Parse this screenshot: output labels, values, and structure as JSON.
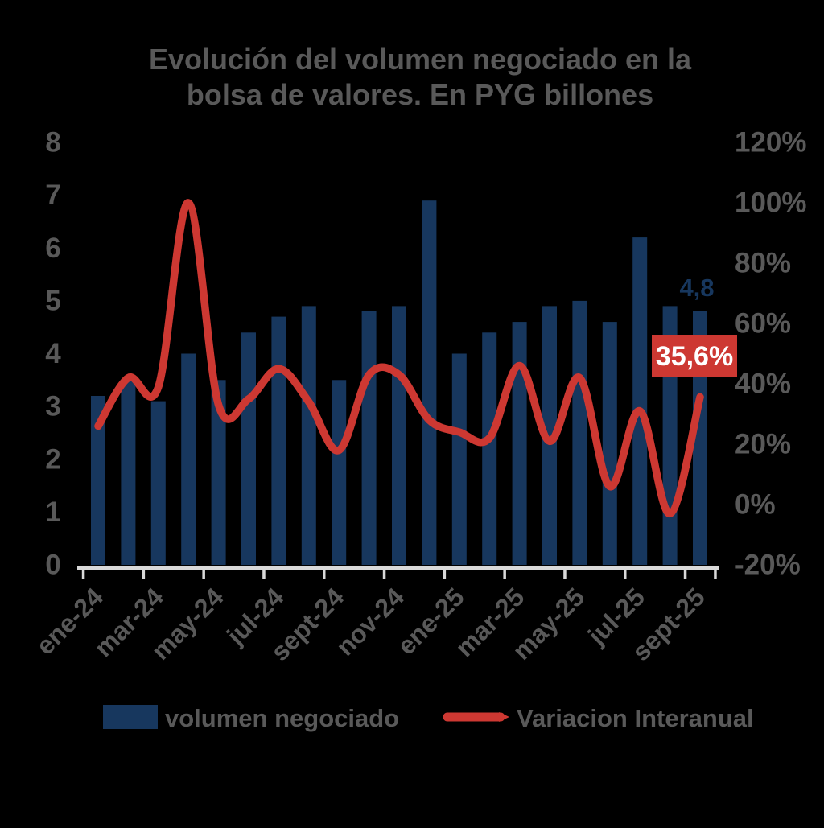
{
  "title": {
    "line1": "Evolución del volumen negociado en la",
    "line2": "bolsa de valores. En PYG billones"
  },
  "legend": {
    "bar_label": "volumen negociado",
    "line_label": "Variacion Interanual"
  },
  "annotations": {
    "last_bar_label": "4,8",
    "last_line_label": "35,6%"
  },
  "colors": {
    "bar": "#17375E",
    "line": "#CD3832",
    "text": "#595959",
    "axis_line": "#D9D9D9",
    "label_box": "#CD3832",
    "label_box_text": "#FFFFFF",
    "background": "#000000"
  },
  "chart_data": {
    "type": "bar+line",
    "title": "Evolución del volumen negociado en la bolsa de valores. En PYG billones",
    "categories": [
      "ene-24",
      "feb-24",
      "mar-24",
      "abr-24",
      "may-24",
      "jun-24",
      "jul-24",
      "ago-24",
      "sept-24",
      "oct-24",
      "nov-24",
      "dic-24",
      "ene-25",
      "feb-25",
      "mar-25",
      "abr-25",
      "may-25",
      "jun-25",
      "jul-25",
      "ago-25",
      "sept-25"
    ],
    "series": [
      {
        "name": "volumen negociado",
        "type": "bar",
        "axis": "left",
        "unit": "PYG billones",
        "values": [
          3.2,
          3.5,
          3.1,
          4.0,
          3.5,
          4.4,
          4.7,
          4.9,
          3.5,
          4.8,
          4.9,
          6.9,
          4.0,
          4.4,
          4.6,
          4.9,
          5.0,
          4.6,
          6.2,
          4.9,
          4.8
        ]
      },
      {
        "name": "Variacion Interanual",
        "type": "line",
        "axis": "right",
        "unit": "%",
        "values": [
          26,
          42,
          39,
          100,
          33,
          35,
          45,
          34,
          18,
          43,
          43,
          28,
          24,
          22,
          46,
          21,
          42,
          6,
          31,
          -3,
          35.6
        ]
      }
    ],
    "left_axis": {
      "ticks": [
        8,
        7,
        6,
        5,
        4,
        3,
        2,
        1,
        0
      ],
      "range": [
        0,
        8
      ],
      "grid": false
    },
    "right_axis": {
      "tick_labels": [
        "120%",
        "100%",
        "80%",
        "60%",
        "40%",
        "20%",
        "0%",
        "-20%"
      ],
      "tick_values": [
        120,
        100,
        80,
        60,
        40,
        20,
        0,
        -20
      ],
      "range": [
        -20,
        120
      ]
    },
    "x_tick_labels": [
      "ene-24",
      "mar-24",
      "may-24",
      "jul-24",
      "sept-24",
      "nov-24",
      "ene-25",
      "mar-25",
      "may-25",
      "jul-25",
      "sept-25"
    ],
    "legend_position": "bottom"
  }
}
